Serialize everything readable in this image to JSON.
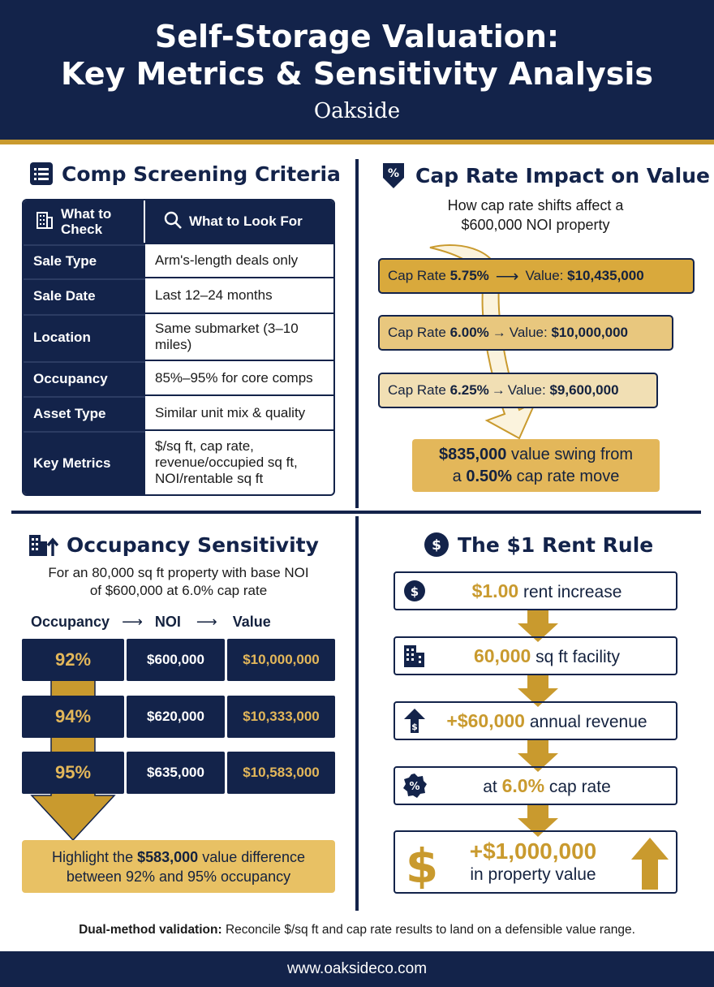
{
  "header": {
    "title_line1": "Self-Storage Valuation:",
    "title_line2": "Key Metrics & Sensitivity Analysis",
    "brand": "Oakside"
  },
  "comp": {
    "title": "Comp Screening Criteria",
    "col1_line1": "What to",
    "col1_line2": "Check",
    "col2": "What to Look For",
    "rows": [
      {
        "k": "Sale Type",
        "v": "Arm's-length deals only"
      },
      {
        "k": "Sale Date",
        "v": "Last 12–24 months"
      },
      {
        "k": "Location",
        "v": "Same submarket (3–10 miles)"
      },
      {
        "k": "Occupancy",
        "v": "85%–95% for core comps"
      },
      {
        "k": "Asset Type",
        "v": "Similar unit mix & quality"
      },
      {
        "k": "Key Metrics",
        "v": "$/sq ft, cap rate, revenue/occupied sq ft, NOI/rentable sq ft"
      }
    ]
  },
  "cap": {
    "title": "Cap Rate Impact on Value",
    "subtitle_line1": "How cap rate shifts affect a",
    "subtitle_line2": "$600,000 NOI property",
    "cap_label": "Cap Rate",
    "value_label": "Value:",
    "rows": [
      {
        "rate": "5.75%",
        "value": "$10,435,000",
        "color": "#d9a93c"
      },
      {
        "rate": "6.00%",
        "value": "$10,000,000",
        "color": "#e8c77e"
      },
      {
        "rate": "6.25%",
        "value": "$9,600,000",
        "color": "#f1dfb4"
      }
    ],
    "swing_amount": "$835,000",
    "swing_mid": "value swing from",
    "swing_pre": "a",
    "swing_move": "0.50%",
    "swing_post": "cap rate move"
  },
  "occupancy": {
    "title": "Occupancy Sensitivity",
    "subtitle_line1": "For an 80,000 sq ft property with base NOI",
    "subtitle_line2": "of $600,000 at 6.0% cap rate",
    "head_occ": "Occupancy",
    "head_noi": "NOI",
    "head_value": "Value",
    "rows": [
      {
        "pct": "92%",
        "noi": "$600,000",
        "value": "$10,000,000"
      },
      {
        "pct": "94%",
        "noi": "$620,000",
        "value": "$10,333,000"
      },
      {
        "pct": "95%",
        "noi": "$635,000",
        "value": "$10,583,000"
      }
    ],
    "note_pre": "Highlight the",
    "note_amount": "$583,000",
    "note_post": "value difference",
    "note_line2": "between 92% and 95% occupancy"
  },
  "rent": {
    "title": "The $1 Rent Rule",
    "steps": [
      {
        "bold": "$1.00",
        "text": "rent increase"
      },
      {
        "bold": "60,000",
        "text": "sq ft facility"
      },
      {
        "bold": "+$60,000",
        "text": "annual revenue"
      },
      {
        "pre": "at",
        "bold": "6.0%",
        "text": "cap rate"
      }
    ],
    "final_amount": "+$1,000,000",
    "final_text": "in property value"
  },
  "footer": {
    "note_bold": "Dual-method validation:",
    "note_text": "Reconcile $/sq ft and cap rate results to land on a defensible value range.",
    "url": "www.oaksideco.com"
  },
  "colors": {
    "navy": "#13234a",
    "gold": "#c99a2e",
    "light_gold": "#e3b75a"
  }
}
